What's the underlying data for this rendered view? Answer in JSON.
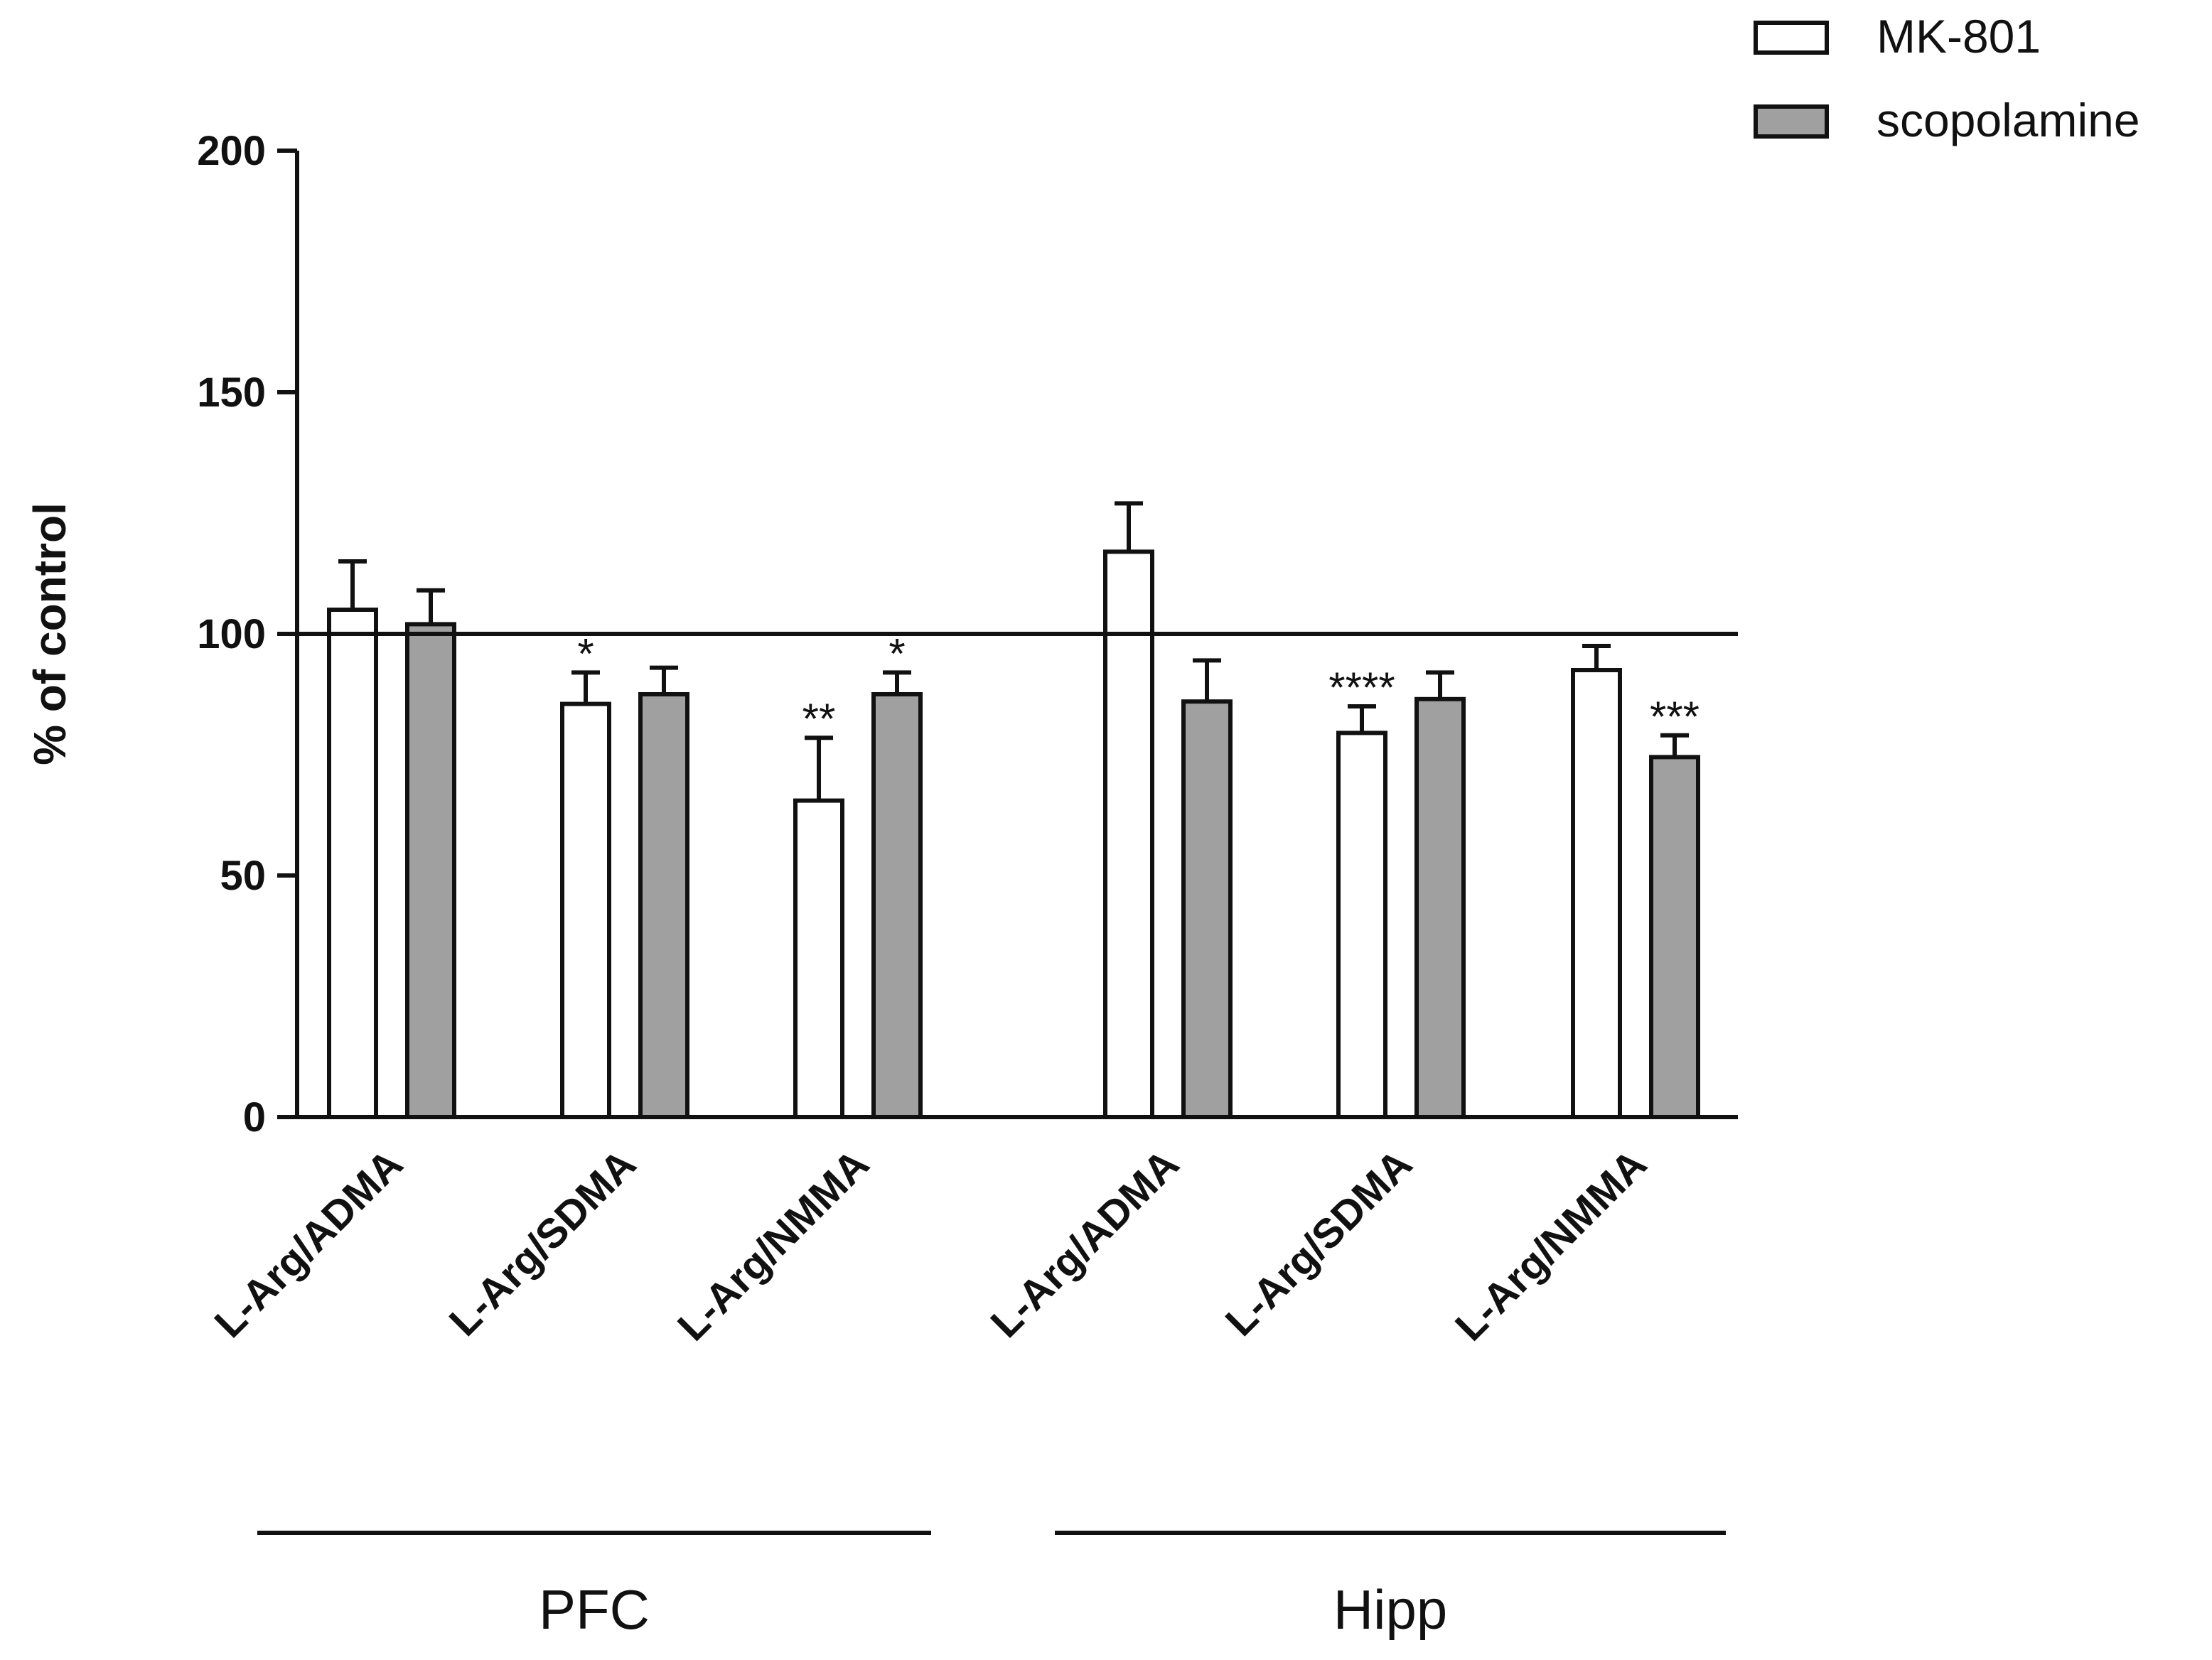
{
  "chart_data": {
    "type": "bar",
    "title": "",
    "xlabel": "",
    "ylabel": "% of control",
    "ylim": [
      0,
      200
    ],
    "yticks": [
      "0",
      "50",
      "100",
      "150",
      "200"
    ],
    "reference_line": 100,
    "categories": [
      "L-Arg/ADMA",
      "L-Arg/SDMA",
      "L-Arg/NMMA",
      "L-Arg/ADMA",
      "L-Arg/SDMA",
      "L-Arg/NMMA"
    ],
    "groups": [
      {
        "label": "PFC",
        "categories": [
          0,
          1,
          2
        ]
      },
      {
        "label": "Hipp",
        "categories": [
          3,
          4,
          5
        ]
      }
    ],
    "series": [
      {
        "name": "MK-801",
        "color": "#ffffff",
        "values": [
          105,
          85.5,
          65.5,
          117,
          79.5,
          92.5
        ],
        "errors": [
          10,
          6.5,
          13,
          10,
          5.5,
          5
        ],
        "annotations": [
          "",
          "*",
          "**",
          "",
          "****",
          ""
        ]
      },
      {
        "name": "scopolamine",
        "color": "#a0a0a0",
        "values": [
          102,
          87.5,
          87.5,
          86,
          86.5,
          74.5
        ],
        "errors": [
          7,
          5.5,
          4.5,
          8.5,
          5.5,
          4.5
        ],
        "annotations": [
          "",
          "",
          "*",
          "",
          "",
          "***"
        ]
      }
    ],
    "legend_position": "top-right",
    "grid": false
  }
}
